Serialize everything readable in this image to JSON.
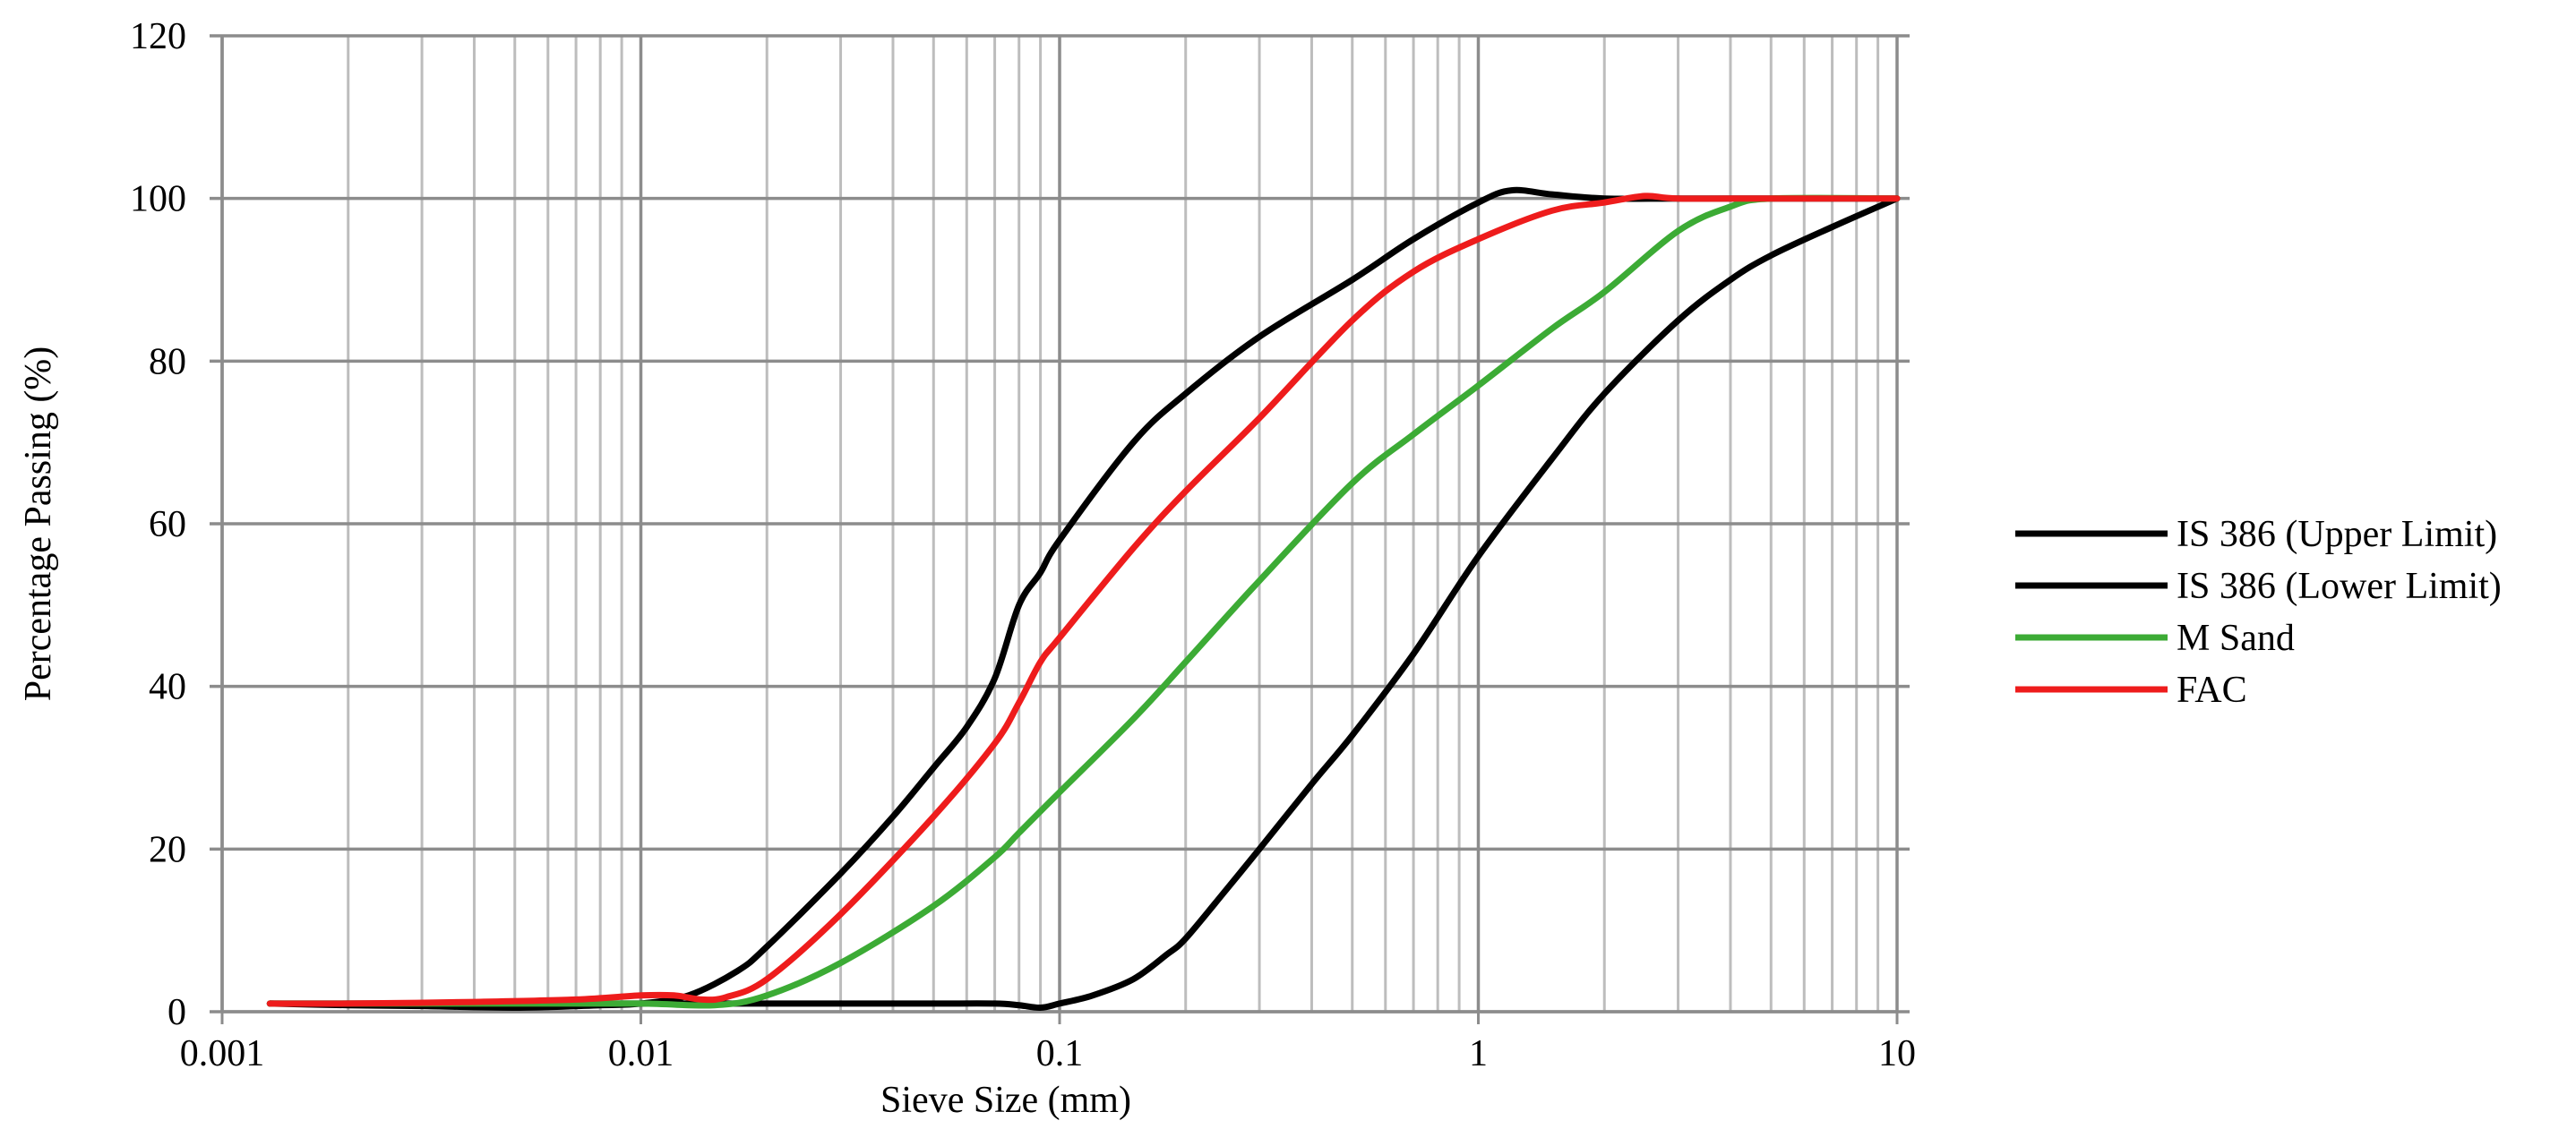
{
  "chart_data": {
    "type": "line",
    "title": "",
    "xlabel": "Sieve Size (mm)",
    "ylabel": "Percentage Passing (%)",
    "xscale": "log",
    "xlim": [
      0.001,
      10
    ],
    "ylim": [
      0,
      120
    ],
    "x_ticks": [
      0.001,
      0.01,
      0.1,
      1,
      10
    ],
    "x_tick_labels": [
      "0.001",
      "0.01",
      "0.1",
      "1",
      "10"
    ],
    "y_ticks": [
      0,
      20,
      40,
      60,
      80,
      100,
      120
    ],
    "y_tick_labels": [
      "0",
      "20",
      "40",
      "60",
      "80",
      "100",
      "120"
    ],
    "grid": true,
    "legend": "right",
    "series": [
      {
        "name": "IS 386 (Upper Limit)",
        "color": "#000000",
        "points": [
          [
            0.0013,
            1
          ],
          [
            0.002,
            0.8
          ],
          [
            0.003,
            0.7
          ],
          [
            0.005,
            0.5
          ],
          [
            0.008,
            0.8
          ],
          [
            0.01,
            1
          ],
          [
            0.013,
            2
          ],
          [
            0.017,
            5
          ],
          [
            0.02,
            8
          ],
          [
            0.03,
            17
          ],
          [
            0.04,
            24
          ],
          [
            0.05,
            30
          ],
          [
            0.06,
            35
          ],
          [
            0.07,
            41
          ],
          [
            0.08,
            50
          ],
          [
            0.09,
            54
          ],
          [
            0.1,
            58
          ],
          [
            0.15,
            70
          ],
          [
            0.2,
            76
          ],
          [
            0.3,
            83
          ],
          [
            0.5,
            90
          ],
          [
            0.7,
            95
          ],
          [
            1,
            99.5
          ],
          [
            1.2,
            101
          ],
          [
            1.5,
            100.5
          ],
          [
            2,
            100
          ],
          [
            3,
            100
          ],
          [
            5,
            100
          ],
          [
            10,
            100
          ]
        ]
      },
      {
        "name": "IS 386 (Lower Limit)",
        "color": "#000000",
        "points": [
          [
            0.0013,
            1
          ],
          [
            0.002,
            1
          ],
          [
            0.005,
            1
          ],
          [
            0.01,
            1
          ],
          [
            0.02,
            1
          ],
          [
            0.03,
            1
          ],
          [
            0.05,
            1
          ],
          [
            0.07,
            1
          ],
          [
            0.08,
            0.8
          ],
          [
            0.09,
            0.5
          ],
          [
            0.1,
            1
          ],
          [
            0.12,
            2
          ],
          [
            0.15,
            4
          ],
          [
            0.18,
            7
          ],
          [
            0.2,
            9
          ],
          [
            0.25,
            15
          ],
          [
            0.3,
            20
          ],
          [
            0.4,
            28
          ],
          [
            0.5,
            34
          ],
          [
            0.7,
            44
          ],
          [
            1,
            56
          ],
          [
            1.5,
            68
          ],
          [
            2,
            76
          ],
          [
            3,
            85
          ],
          [
            4,
            90
          ],
          [
            5,
            93
          ],
          [
            7,
            96.5
          ],
          [
            10,
            100
          ]
        ]
      },
      {
        "name": "M Sand",
        "color": "#3cab35",
        "points": [
          [
            0.0013,
            1
          ],
          [
            0.005,
            1
          ],
          [
            0.01,
            1
          ],
          [
            0.015,
            0.8
          ],
          [
            0.02,
            2
          ],
          [
            0.03,
            6
          ],
          [
            0.05,
            13
          ],
          [
            0.07,
            19
          ],
          [
            0.08,
            22
          ],
          [
            0.1,
            27
          ],
          [
            0.15,
            36
          ],
          [
            0.2,
            43
          ],
          [
            0.3,
            53
          ],
          [
            0.5,
            65
          ],
          [
            0.7,
            71
          ],
          [
            1,
            77
          ],
          [
            1.5,
            84
          ],
          [
            2,
            88.5
          ],
          [
            3,
            96
          ],
          [
            4,
            99
          ],
          [
            5,
            100
          ],
          [
            10,
            100
          ]
        ]
      },
      {
        "name": "FAC",
        "color": "#ee1c1c",
        "points": [
          [
            0.0013,
            1
          ],
          [
            0.002,
            1
          ],
          [
            0.004,
            1.2
          ],
          [
            0.007,
            1.5
          ],
          [
            0.01,
            2
          ],
          [
            0.012,
            2
          ],
          [
            0.014,
            1.5
          ],
          [
            0.016,
            1.8
          ],
          [
            0.02,
            4
          ],
          [
            0.03,
            12
          ],
          [
            0.05,
            24
          ],
          [
            0.07,
            33
          ],
          [
            0.08,
            38
          ],
          [
            0.09,
            43
          ],
          [
            0.1,
            46
          ],
          [
            0.15,
            57
          ],
          [
            0.2,
            64
          ],
          [
            0.3,
            73
          ],
          [
            0.5,
            85
          ],
          [
            0.7,
            91
          ],
          [
            1,
            95
          ],
          [
            1.5,
            98.5
          ],
          [
            2,
            99.5
          ],
          [
            2.5,
            100.3
          ],
          [
            3,
            100
          ],
          [
            5,
            100
          ],
          [
            10,
            100
          ]
        ]
      }
    ]
  }
}
